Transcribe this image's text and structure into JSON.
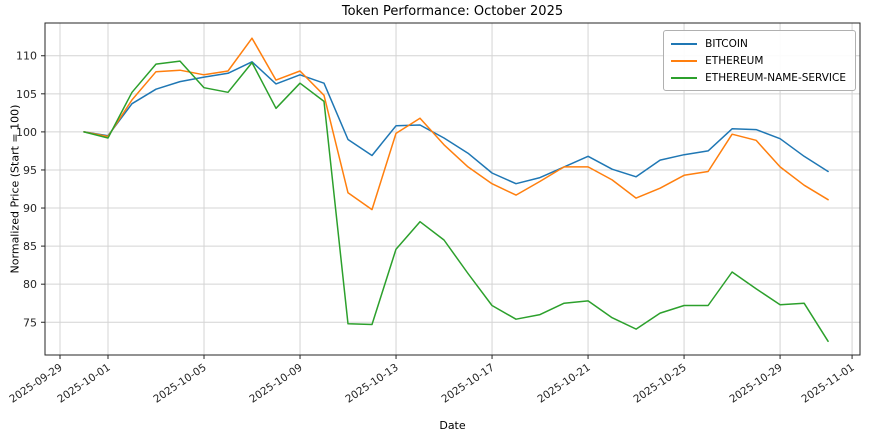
{
  "figure": {
    "title": "Token Performance: October 2025",
    "xlabel": "Date",
    "ylabel": "Normalized Price (Start = 100)"
  },
  "chart_data": {
    "type": "line",
    "title": "Token Performance: October 2025",
    "xlabel": "Date",
    "ylabel": "Normalized Price (Start = 100)",
    "grid": true,
    "legend_position": "upper right",
    "x": [
      "2025-09-30",
      "2025-10-01",
      "2025-10-02",
      "2025-10-03",
      "2025-10-04",
      "2025-10-05",
      "2025-10-06",
      "2025-10-07",
      "2025-10-08",
      "2025-10-09",
      "2025-10-10",
      "2025-10-11",
      "2025-10-12",
      "2025-10-13",
      "2025-10-14",
      "2025-10-15",
      "2025-10-16",
      "2025-10-17",
      "2025-10-18",
      "2025-10-19",
      "2025-10-20",
      "2025-10-21",
      "2025-10-22",
      "2025-10-23",
      "2025-10-24",
      "2025-10-25",
      "2025-10-26",
      "2025-10-27",
      "2025-10-28",
      "2025-10-29",
      "2025-10-30",
      "2025-10-31"
    ],
    "series": [
      {
        "name": "BITCOIN",
        "color": "#1f77b4",
        "values": [
          100.0,
          99.5,
          103.7,
          105.6,
          106.6,
          107.2,
          107.7,
          109.2,
          106.3,
          107.5,
          106.4,
          99.0,
          96.9,
          100.8,
          100.9,
          99.2,
          97.2,
          94.6,
          93.2,
          94.0,
          95.4,
          96.8,
          95.1,
          94.1,
          96.3,
          97.0,
          97.5,
          100.4,
          100.3,
          99.1,
          96.8,
          94.8
        ]
      },
      {
        "name": "ETHEREUM",
        "color": "#ff7f0e",
        "values": [
          100.0,
          99.4,
          104.2,
          107.9,
          108.1,
          107.5,
          108.0,
          112.3,
          106.8,
          108.0,
          104.8,
          92.0,
          89.8,
          99.8,
          101.8,
          98.3,
          95.4,
          93.2,
          91.7,
          93.5,
          95.4,
          95.4,
          93.7,
          91.3,
          92.6,
          94.3,
          94.8,
          99.7,
          98.9,
          95.4,
          93.0,
          91.1
        ]
      },
      {
        "name": "ETHEREUM-NAME-SERVICE",
        "color": "#2ca02c",
        "values": [
          100.0,
          99.2,
          105.2,
          108.9,
          109.3,
          105.8,
          105.2,
          109.1,
          103.1,
          106.4,
          104.0,
          74.8,
          74.7,
          84.6,
          88.2,
          85.8,
          81.4,
          77.2,
          75.4,
          76.0,
          77.5,
          77.8,
          75.6,
          74.1,
          76.2,
          77.2,
          77.2,
          81.6,
          79.4,
          77.3,
          77.5,
          72.5
        ]
      }
    ],
    "xticks": [
      "2025-09-29",
      "2025-10-01",
      "2025-10-05",
      "2025-10-09",
      "2025-10-13",
      "2025-10-17",
      "2025-10-21",
      "2025-10-25",
      "2025-10-29",
      "2025-11-01"
    ],
    "yticks": [
      75,
      80,
      85,
      90,
      95,
      100,
      105,
      110
    ],
    "ylim": [
      70.7,
      114.3
    ],
    "xlim_days": [
      -1.625,
      32.33
    ],
    "xtick_rotation_deg": 34,
    "grid_color": "#d4d4d4",
    "axis_color": "#262626",
    "tick_label_color": "#262626"
  }
}
